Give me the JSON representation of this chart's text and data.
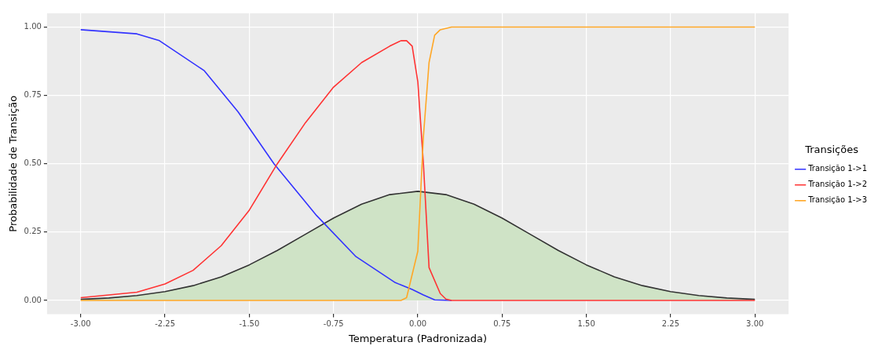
{
  "chart_data": {
    "type": "line",
    "xlabel": "Temperatura (Padronizada)",
    "ylabel": "Probabilidade de Transição",
    "legend_title": "Transições",
    "legend": "right",
    "grid": true,
    "marker": "none",
    "line_style": "solid",
    "xlim": [
      -3.3,
      3.3
    ],
    "ylim": [
      -0.05,
      1.05
    ],
    "xticks": [
      {
        "value": -3,
        "label": "-3.00"
      },
      {
        "value": -2.25,
        "label": "-2.25"
      },
      {
        "value": -1.5,
        "label": "-1.50"
      },
      {
        "value": -0.75,
        "label": "-0.75"
      },
      {
        "value": 0,
        "label": "0.00"
      },
      {
        "value": 0.75,
        "label": "0.75"
      },
      {
        "value": 1.5,
        "label": "1.50"
      },
      {
        "value": 2.25,
        "label": "2.25"
      },
      {
        "value": 3,
        "label": "3.00"
      }
    ],
    "yticks": [
      {
        "value": 0,
        "label": "0.00"
      },
      {
        "value": 0.25,
        "label": "0.25"
      },
      {
        "value": 0.5,
        "label": "0.50"
      },
      {
        "value": 0.75,
        "label": "0.75"
      },
      {
        "value": 1,
        "label": "1.00"
      }
    ],
    "series": [
      {
        "type": "area",
        "color": "#cfe3c6",
        "x": [
          -3,
          -2.75,
          -2.5,
          -2.25,
          -2,
          -1.75,
          -1.5,
          -1.25,
          -1,
          -0.75,
          -0.5,
          -0.25,
          0,
          0.25,
          0.5,
          0.75,
          1,
          1.25,
          1.5,
          1.75,
          2,
          2.25,
          2.5,
          2.75,
          3
        ],
        "values": [
          0.004,
          0.009,
          0.018,
          0.032,
          0.054,
          0.086,
          0.13,
          0.183,
          0.242,
          0.301,
          0.352,
          0.387,
          0.399,
          0.387,
          0.352,
          0.301,
          0.242,
          0.183,
          0.13,
          0.086,
          0.054,
          0.032,
          0.018,
          0.009,
          0.004
        ]
      },
      {
        "name": "Transição 1->1",
        "color": "#3333ff",
        "x": [
          -3,
          -2.5,
          -2.3,
          -1.9,
          -1.6,
          -1.28,
          -0.9,
          -0.55,
          -0.2,
          -0.05,
          0.05,
          0.15,
          0.3
        ],
        "values": [
          0.99,
          0.975,
          0.95,
          0.84,
          0.69,
          0.5,
          0.31,
          0.16,
          0.065,
          0.04,
          0.02,
          0.002,
          0
        ]
      },
      {
        "name": "Transição 1->2",
        "color": "#ff3333",
        "x": [
          -3,
          -2.5,
          -2.25,
          -2,
          -1.75,
          -1.5,
          -1.25,
          -1,
          -0.75,
          -0.5,
          -0.25,
          -0.15,
          -0.1,
          -0.05,
          0,
          0.05,
          0.1,
          0.2,
          0.25,
          0.3,
          3
        ],
        "values": [
          0.01,
          0.03,
          0.06,
          0.11,
          0.2,
          0.33,
          0.5,
          0.65,
          0.78,
          0.87,
          0.93,
          0.95,
          0.95,
          0.93,
          0.8,
          0.5,
          0.12,
          0.025,
          0.005,
          0,
          0
        ]
      },
      {
        "name": "Transição 1->3",
        "color": "#ffa726",
        "x": [
          -3,
          -0.15,
          -0.1,
          0,
          0.05,
          0.1,
          0.15,
          0.2,
          0.3,
          3
        ],
        "values": [
          0,
          0,
          0.01,
          0.18,
          0.6,
          0.87,
          0.97,
          0.99,
          1,
          1
        ]
      }
    ]
  }
}
